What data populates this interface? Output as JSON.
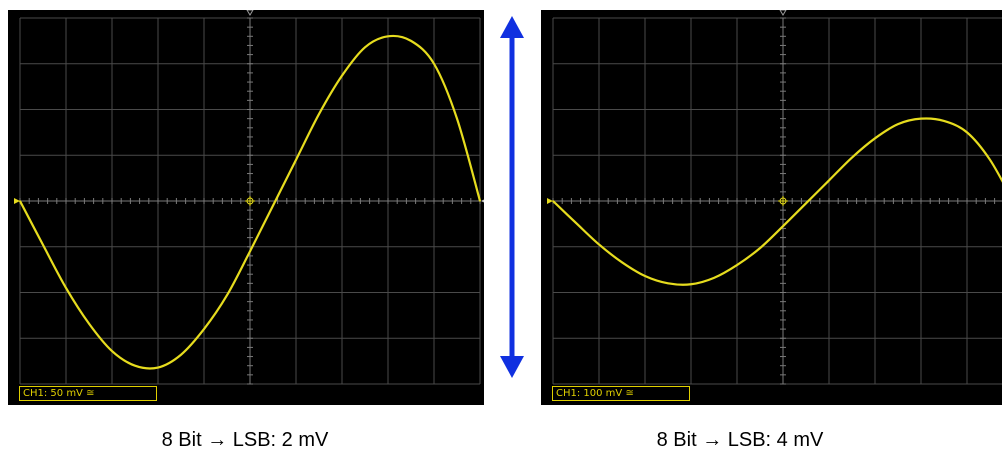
{
  "chart_data": [
    {
      "type": "line",
      "title": "",
      "channel_label": "CH1: 50 mV ≅",
      "caption": "8 Bit → LSB: 2 mV",
      "volts_per_div": 50,
      "unit": "mV",
      "grid": true,
      "divisions": {
        "x": 10,
        "y": 8
      },
      "ylim": [
        -200,
        200
      ],
      "xlim": [
        0,
        10
      ],
      "series": [
        {
          "x": [
            0,
            0.5,
            1,
            1.5,
            2,
            2.5,
            3,
            3.5,
            4,
            4.5,
            5,
            5.5,
            6,
            6.5,
            7,
            7.5,
            8,
            8.5,
            9,
            9.5,
            10
          ],
          "values": [
            0,
            -48,
            -95,
            -134,
            -164,
            -180,
            -182,
            -168,
            -140,
            -103,
            -55,
            -5,
            45,
            95,
            137,
            168,
            180,
            175,
            150,
            90,
            0
          ]
        }
      ],
      "color": "#e6dc1e"
    },
    {
      "type": "line",
      "title": "",
      "channel_label": "CH1: 100 mV ≅",
      "caption": "8 Bit → LSB: 4 mV",
      "volts_per_div": 100,
      "unit": "mV",
      "grid": true,
      "divisions": {
        "x": 10,
        "y": 8
      },
      "ylim": [
        -400,
        400
      ],
      "xlim": [
        0,
        10
      ],
      "series": [
        {
          "x": [
            0,
            0.5,
            1,
            1.5,
            2,
            2.5,
            3,
            3.5,
            4,
            4.5,
            5,
            5.5,
            6,
            6.5,
            7,
            7.5,
            8,
            8.5,
            9,
            9.5,
            10
          ],
          "values": [
            0,
            -48,
            -95,
            -134,
            -164,
            -180,
            -182,
            -168,
            -140,
            -103,
            -55,
            -5,
            45,
            95,
            137,
            168,
            180,
            175,
            150,
            90,
            0
          ]
        }
      ],
      "color": "#e6dc1e"
    }
  ],
  "arrow_color": "#1030e0"
}
